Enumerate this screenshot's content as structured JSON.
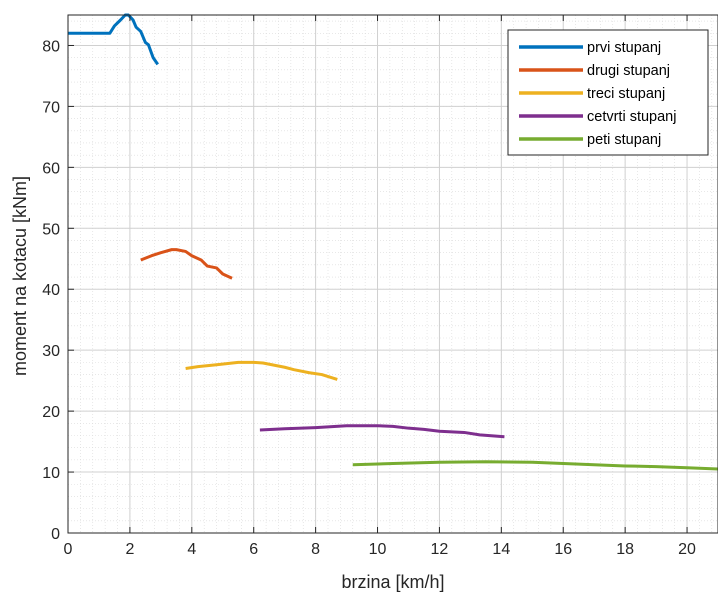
{
  "chart_data": {
    "type": "line",
    "xlabel": "brzina [km/h]",
    "ylabel": "moment na kotacu [kNm]",
    "xlim": [
      0,
      21
    ],
    "ylim": [
      0,
      85
    ],
    "xticks": [
      0,
      2,
      4,
      6,
      8,
      10,
      12,
      14,
      16,
      18,
      20
    ],
    "yticks": [
      0,
      10,
      20,
      30,
      40,
      50,
      60,
      70,
      80
    ],
    "grid": true,
    "minor_grid": true,
    "legend_position": "top-right",
    "series": [
      {
        "name": "prvi stupanj",
        "color": "#0072BD",
        "x": [
          0,
          0.5,
          1.0,
          1.35,
          1.5,
          1.7,
          1.85,
          1.95,
          2.1,
          2.2,
          2.35,
          2.5,
          2.6,
          2.75,
          2.9
        ],
        "y": [
          82,
          82,
          82,
          82,
          83.2,
          84.2,
          85,
          85,
          84.2,
          83,
          82.3,
          80.5,
          80.1,
          78,
          76.9
        ]
      },
      {
        "name": "drugi stupanj",
        "color": "#D95319",
        "x": [
          2.35,
          2.7,
          3.0,
          3.35,
          3.5,
          3.8,
          4.0,
          4.3,
          4.5,
          4.8,
          5.0,
          5.3
        ],
        "y": [
          44.8,
          45.5,
          46.0,
          46.5,
          46.5,
          46.2,
          45.5,
          44.8,
          43.8,
          43.5,
          42.5,
          41.8
        ]
      },
      {
        "name": "treci stupanj",
        "color": "#EDB120",
        "x": [
          3.8,
          4.2,
          4.8,
          5.5,
          6.0,
          6.3,
          7.0,
          7.3,
          7.8,
          8.2,
          8.7
        ],
        "y": [
          27.0,
          27.3,
          27.6,
          28.0,
          28.0,
          27.9,
          27.2,
          26.8,
          26.3,
          26.0,
          25.2
        ]
      },
      {
        "name": "cetvrti stupanj",
        "color": "#7E2F8E",
        "x": [
          6.2,
          7.0,
          8.0,
          9.0,
          10.0,
          10.5,
          11.0,
          11.5,
          12.0,
          12.8,
          13.3,
          14.1
        ],
        "y": [
          16.9,
          17.1,
          17.3,
          17.6,
          17.6,
          17.5,
          17.2,
          17.0,
          16.7,
          16.5,
          16.1,
          15.8
        ]
      },
      {
        "name": "peti stupanj",
        "color": "#77AC30",
        "x": [
          9.2,
          10.5,
          12.0,
          13.5,
          15.0,
          16.5,
          18.0,
          19.0,
          20.0,
          21.0
        ],
        "y": [
          11.2,
          11.4,
          11.6,
          11.7,
          11.6,
          11.3,
          11.0,
          10.9,
          10.7,
          10.5
        ]
      }
    ]
  }
}
